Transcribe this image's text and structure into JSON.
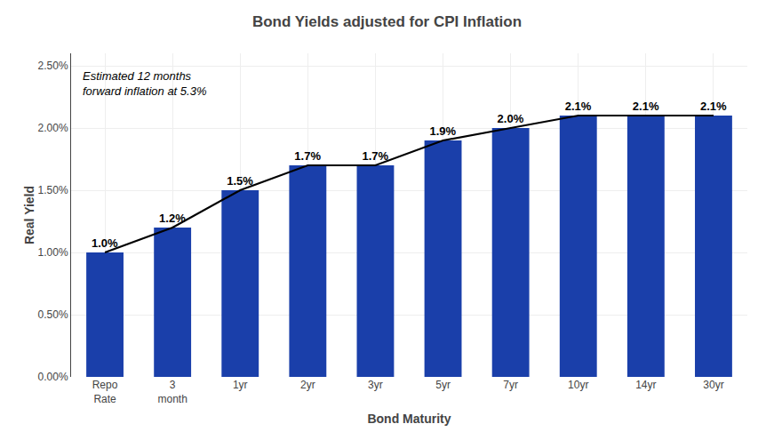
{
  "chart_data": {
    "type": "bar",
    "title": "Bond Yields adjusted for CPI Inflation",
    "xlabel": "Bond Maturity",
    "ylabel": "Real Yield",
    "annotation": "Estimated 12 months\nforward inflation at 5.3%",
    "categories": [
      "Repo\nRate",
      "3\nmonth",
      "1yr",
      "2yr",
      "3yr",
      "5yr",
      "7yr",
      "10yr",
      "14yr",
      "30yr"
    ],
    "series": [
      {
        "type": "bar",
        "color": "#1a3faa",
        "values": [
          0.01,
          0.012,
          0.015,
          0.017,
          0.017,
          0.019,
          0.02,
          0.021,
          0.021,
          0.021
        ],
        "value_labels": [
          "1.0%",
          "1.2%",
          "1.5%",
          "1.7%",
          "1.7%",
          "1.9%",
          "2.0%",
          "2.1%",
          "2.1%",
          "2.1%"
        ]
      },
      {
        "type": "line",
        "color": "#000000",
        "values": [
          0.01,
          0.012,
          0.015,
          0.017,
          0.017,
          0.019,
          0.02,
          0.021,
          0.021,
          0.021
        ]
      }
    ],
    "data_labels": true,
    "ylim": [
      0.0,
      0.026
    ],
    "yticks": [
      {
        "value": 0.0,
        "label": "0.00%"
      },
      {
        "value": 0.005,
        "label": "0.50%"
      },
      {
        "value": 0.01,
        "label": "1.00%"
      },
      {
        "value": 0.015,
        "label": "1.50%"
      },
      {
        "value": 0.02,
        "label": "2.00%"
      },
      {
        "value": 0.025,
        "label": "2.50%"
      }
    ],
    "grid": true
  }
}
